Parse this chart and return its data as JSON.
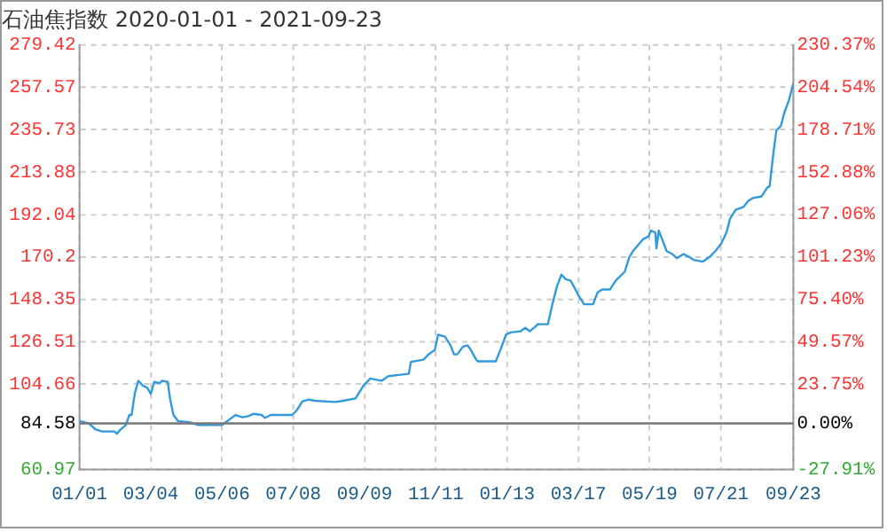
{
  "chart_data": {
    "type": "line",
    "title": "石油焦指数 2020-01-01 - 2021-09-23",
    "x": [
      "2020-01-01",
      "2020-01-09",
      "2020-01-15",
      "2020-01-21",
      "2020-02-01",
      "2020-02-03",
      "2020-02-06",
      "2020-02-11",
      "2020-02-14",
      "2020-02-16",
      "2020-02-19",
      "2020-02-22",
      "2020-02-26",
      "2020-03-01",
      "2020-03-04",
      "2020-03-07",
      "2020-03-12",
      "2020-03-14",
      "2020-03-19",
      "2020-03-21",
      "2020-03-24",
      "2020-03-28",
      "2020-04-07",
      "2020-04-15",
      "2020-05-06",
      "2020-05-13",
      "2020-05-18",
      "2020-05-24",
      "2020-05-29",
      "2020-06-03",
      "2020-06-10",
      "2020-06-13",
      "2020-06-18",
      "2020-07-07",
      "2020-07-11",
      "2020-07-16",
      "2020-07-22",
      "2020-07-27",
      "2020-08-14",
      "2020-08-21",
      "2020-09-01",
      "2020-09-08",
      "2020-09-14",
      "2020-09-24",
      "2020-09-30",
      "2020-10-09",
      "2020-10-18",
      "2020-10-20",
      "2020-10-31",
      "2020-11-04",
      "2020-11-10",
      "2020-11-13",
      "2020-11-19",
      "2020-11-24",
      "2020-11-27",
      "2020-11-30",
      "2020-12-05",
      "2020-12-09",
      "2020-12-12",
      "2020-12-16",
      "2020-12-18",
      "2021-01-03",
      "2021-01-07",
      "2021-01-12",
      "2021-01-16",
      "2021-01-25",
      "2021-01-29",
      "2021-02-02",
      "2021-02-07",
      "2021-02-09",
      "2021-02-18",
      "2021-02-22",
      "2021-02-26",
      "2021-03-02",
      "2021-03-06",
      "2021-03-10",
      "2021-03-13",
      "2021-03-17",
      "2021-03-22",
      "2021-03-30",
      "2021-04-03",
      "2021-04-07",
      "2021-04-14",
      "2021-04-19",
      "2021-04-27",
      "2021-05-01",
      "2021-05-05",
      "2021-05-13",
      "2021-05-18",
      "2021-05-20",
      "2021-05-24",
      "2021-05-25",
      "2021-05-27",
      "2021-05-31",
      "2021-06-03",
      "2021-06-08",
      "2021-06-12",
      "2021-06-18",
      "2021-06-23",
      "2021-06-27",
      "2021-07-05",
      "2021-07-11",
      "2021-07-16",
      "2021-07-21",
      "2021-07-26",
      "2021-07-29",
      "2021-08-03",
      "2021-08-10",
      "2021-08-14",
      "2021-08-18",
      "2021-08-26",
      "2021-08-31",
      "2021-09-02",
      "2021-09-05",
      "2021-09-08",
      "2021-09-12",
      "2021-09-15",
      "2021-09-19",
      "2021-09-23"
    ],
    "series": [
      {
        "color": "#3399dd",
        "values": [
          85.8,
          84.6,
          81.6,
          80.4,
          80.4,
          79.2,
          81.3,
          83.7,
          88.9,
          88.9,
          100.4,
          106.5,
          104.0,
          102.8,
          99.8,
          105.9,
          105.3,
          106.5,
          105.9,
          97.4,
          88.9,
          85.8,
          85.2,
          83.7,
          83.7,
          86.8,
          88.9,
          87.7,
          88.3,
          89.5,
          88.9,
          87.4,
          88.9,
          88.9,
          91.3,
          95.9,
          96.8,
          96.2,
          95.6,
          96.2,
          97.4,
          104.0,
          107.7,
          106.5,
          108.9,
          109.5,
          110.1,
          116.2,
          117.4,
          119.8,
          122.3,
          130.2,
          129.2,
          124.7,
          120.1,
          120.1,
          124.1,
          124.7,
          122.3,
          118.0,
          116.5,
          116.5,
          122.3,
          130.2,
          131.4,
          132.0,
          133.8,
          132.0,
          134.4,
          135.6,
          135.6,
          145.9,
          155.0,
          161.1,
          158.7,
          158.1,
          155.0,
          150.5,
          145.9,
          145.9,
          152.0,
          153.5,
          153.5,
          158.1,
          162.6,
          170.2,
          173.8,
          179.3,
          180.8,
          183.8,
          182.9,
          174.7,
          183.8,
          177.8,
          173.2,
          171.7,
          169.6,
          171.7,
          170.2,
          168.7,
          167.8,
          170.2,
          173.2,
          176.9,
          182.9,
          189.9,
          194.5,
          196.0,
          199.0,
          200.5,
          201.4,
          206.0,
          206.6,
          221.8,
          235.4,
          237.6,
          244.5,
          250.6,
          259.7
        ]
      }
    ],
    "xlim": [
      "2020-01-01",
      "2021-09-23"
    ],
    "xticks": [
      {
        "value": "2020-01-01",
        "label": "01/01"
      },
      {
        "value": "2020-03-04",
        "label": "03/04"
      },
      {
        "value": "2020-05-06",
        "label": "05/06"
      },
      {
        "value": "2020-07-08",
        "label": "07/08"
      },
      {
        "value": "2020-09-09",
        "label": "09/09"
      },
      {
        "value": "2020-11-11",
        "label": "11/11"
      },
      {
        "value": "2021-01-13",
        "label": "01/13"
      },
      {
        "value": "2021-03-17",
        "label": "03/17"
      },
      {
        "value": "2021-05-19",
        "label": "05/19"
      },
      {
        "value": "2021-07-21",
        "label": "07/21"
      },
      {
        "value": "2021-09-23",
        "label": "09/23"
      }
    ],
    "ylim": [
      60.97,
      279.42
    ],
    "yticks": [
      60.97,
      84.58,
      104.66,
      126.51,
      148.35,
      170.2,
      192.04,
      213.88,
      235.73,
      257.57,
      279.42
    ],
    "y2lim": [
      -27.91,
      230.37
    ],
    "y2ticks": [
      {
        "value": -27.91,
        "label": "-27.91%"
      },
      {
        "value": 0,
        "label": "0.00%"
      },
      {
        "value": 23.75,
        "label": "23.75%"
      },
      {
        "value": 49.57,
        "label": "49.57%"
      },
      {
        "value": 75.4,
        "label": "75.40%"
      },
      {
        "value": 101.23,
        "label": "101.23%"
      },
      {
        "value": 127.06,
        "label": "127.06%"
      },
      {
        "value": 152.88,
        "label": "152.88%"
      },
      {
        "value": 178.71,
        "label": "178.71%"
      },
      {
        "value": 204.54,
        "label": "204.54%"
      },
      {
        "value": 230.37,
        "label": "230.37%"
      }
    ],
    "ref_lines": [
      {
        "axis": "y",
        "value": 84.58,
        "color": "#777777"
      }
    ],
    "grid": true,
    "legend": false
  }
}
